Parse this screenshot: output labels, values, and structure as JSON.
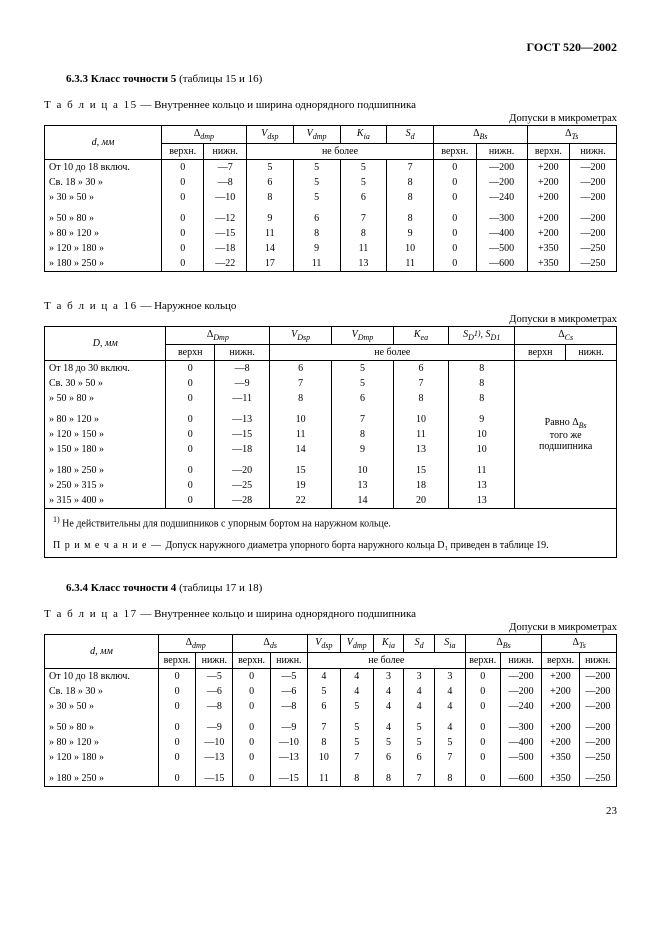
{
  "doc_header": "ГОСТ 520—2002",
  "page_number": "23",
  "section633": {
    "num": "6.3.3",
    "title": "Класс точности 5",
    "suffix": "(таблицы 15 и 16)"
  },
  "section634": {
    "num": "6.3.4",
    "title": "Класс точности 4",
    "suffix": "(таблицы 17 и 18)"
  },
  "t15": {
    "caption_pre": "Т а б л и ц а  15",
    "caption_rest": " — Внутреннее кольцо и ширина однорядного подшипника",
    "units": "Допуски в микрометрах",
    "col_d": "d, мм",
    "h_dmp": "Δ",
    "h_dmp_sub": "dmp",
    "h_vdsp": "V",
    "h_vdsp_sub": "dsp",
    "h_vdmp": "V",
    "h_vdmp_sub": "dmp",
    "h_kia": "K",
    "h_kia_sub": "ia",
    "h_sd": "S",
    "h_sd_sub": "d",
    "h_dbs": "Δ",
    "h_dbs_sub": "Bs",
    "h_dts": "Δ",
    "h_dts_sub": "Ts",
    "upper": "верхн.",
    "lower": "нижн.",
    "nb": "не более",
    "rows": [
      {
        "l": "От  10  до   18  включ.",
        "u": "0",
        "low": "—7",
        "vdsp": "5",
        "vdmp": "5",
        "kia": "5",
        "sd": "7",
        "bsu": "0",
        "bsl": "—200",
        "tsu": "+200",
        "tsl": "—200"
      },
      {
        "l": "Св. 18  »   30      »",
        "u": "0",
        "low": "—8",
        "vdsp": "6",
        "vdmp": "5",
        "kia": "5",
        "sd": "8",
        "bsu": "0",
        "bsl": "—200",
        "tsu": "+200",
        "tsl": "—200"
      },
      {
        "l": "  »   30  »   50      »",
        "u": "0",
        "low": "—10",
        "vdsp": "8",
        "vdmp": "5",
        "kia": "6",
        "sd": "8",
        "bsu": "0",
        "bsl": "—240",
        "tsu": "+200",
        "tsl": "—200"
      },
      {
        "l": "  »   50  »   80      »",
        "u": "0",
        "low": "—12",
        "vdsp": "9",
        "vdmp": "6",
        "kia": "7",
        "sd": "8",
        "bsu": "0",
        "bsl": "—300",
        "tsu": "+200",
        "tsl": "—200"
      },
      {
        "l": "  »   80  »  120     »",
        "u": "0",
        "low": "—15",
        "vdsp": "11",
        "vdmp": "8",
        "kia": "8",
        "sd": "9",
        "bsu": "0",
        "bsl": "—400",
        "tsu": "+200",
        "tsl": "—200"
      },
      {
        "l": "  » 120  »  180     »",
        "u": "0",
        "low": "—18",
        "vdsp": "14",
        "vdmp": "9",
        "kia": "11",
        "sd": "10",
        "bsu": "0",
        "bsl": "—500",
        "tsu": "+350",
        "tsl": "—250"
      },
      {
        "l": "  » 180  »  250     »",
        "u": "0",
        "low": "—22",
        "vdsp": "17",
        "vdmp": "11",
        "kia": "13",
        "sd": "11",
        "bsu": "0",
        "bsl": "—600",
        "tsu": "+350",
        "tsl": "—250"
      }
    ]
  },
  "t16": {
    "caption_pre": "Т а б л и ц а  16",
    "caption_rest": " — Наружное кольцо",
    "units": "Допуски в микрометрах",
    "col_D": "D, мм",
    "h_Dmp": "Δ",
    "h_Dmp_sub": "Dmp",
    "h_VDsp": "V",
    "h_VDsp_sub": "Dsp",
    "h_VDmp": "V",
    "h_VDmp_sub": "Dmp",
    "h_Kea": "K",
    "h_Kea_sub": "ea",
    "h_SD_html": "S<sub>D</sub><sup class='sub-note'>1)</sup>, S<sub>D1</sub>",
    "h_Cs": "Δ",
    "h_Cs_sub": "Cs",
    "upper": "верхн",
    "lower": "нижн.",
    "nb": "не более",
    "cs_note1": "Равно Δ",
    "cs_note1_sub": "Bs",
    "cs_note2": "того же",
    "cs_note3": "подшипника",
    "rows": [
      {
        "l": "От  18  до   30  включ.",
        "u": "0",
        "low": "—8",
        "vDsp": "6",
        "vDmp": "5",
        "kea": "6",
        "sd": "8"
      },
      {
        "l": "Св. 30  »   50      »",
        "u": "0",
        "low": "—9",
        "vDsp": "7",
        "vDmp": "5",
        "kea": "7",
        "sd": "8"
      },
      {
        "l": "  »   50  »   80      »",
        "u": "0",
        "low": "—11",
        "vDsp": "8",
        "vDmp": "6",
        "kea": "8",
        "sd": "8"
      },
      {
        "l": "  »   80  »  120     »",
        "u": "0",
        "low": "—13",
        "vDsp": "10",
        "vDmp": "7",
        "kea": "10",
        "sd": "9"
      },
      {
        "l": "  » 120  »  150     »",
        "u": "0",
        "low": "—15",
        "vDsp": "11",
        "vDmp": "8",
        "kea": "11",
        "sd": "10"
      },
      {
        "l": "  » 150  »  180     »",
        "u": "0",
        "low": "—18",
        "vDsp": "14",
        "vDmp": "9",
        "kea": "13",
        "sd": "10"
      },
      {
        "l": "  » 180  »  250     »",
        "u": "0",
        "low": "—20",
        "vDsp": "15",
        "vDmp": "10",
        "kea": "15",
        "sd": "11"
      },
      {
        "l": "  » 250  »  315     »",
        "u": "0",
        "low": "—25",
        "vDsp": "19",
        "vDmp": "13",
        "kea": "18",
        "sd": "13"
      },
      {
        "l": "  » 315  »  400     »",
        "u": "0",
        "low": "—28",
        "vDsp": "22",
        "vDmp": "14",
        "kea": "20",
        "sd": "13"
      }
    ],
    "footnote1_pre": "1)",
    "footnote1_txt": "Не действительны для подшипников с упорным бортом на наружном кольце.",
    "footnote2_pre": "П р и м е ч а н и е — ",
    "footnote2_txt": "Допуск наружного диаметра упорного борта наружного кольца D₁ приведен в таблице 19."
  },
  "t17": {
    "caption_pre": "Т а б л и ц а  17",
    "caption_rest": " — Внутреннее кольцо и ширина однорядного подшипника",
    "units": "Допуски в микрометрах",
    "col_d": "d, мм",
    "h_dmp": "Δ",
    "h_dmp_sub": "dmp",
    "h_ds": "Δ",
    "h_ds_sub": "ds",
    "h_vdsp": "V",
    "h_vdsp_sub": "dsp",
    "h_vdmp": "V",
    "h_vdmp_sub": "dmp",
    "h_kia": "K",
    "h_kia_sub": "ia",
    "h_sd": "S",
    "h_sd_sub": "d",
    "h_sia": "S",
    "h_sia_sub": "ia",
    "h_dbs": "Δ",
    "h_dbs_sub": "Bs",
    "h_dts": "Δ",
    "h_dts_sub": "Ts",
    "upper": "верхн.",
    "lower": "нижн.",
    "nb": "не более",
    "rows": [
      {
        "l": "От  10  до   18  включ.",
        "dmpu": "0",
        "dmpl": "—5",
        "dsu": "0",
        "dsl": "—5",
        "vdsp": "4",
        "vdmp": "4",
        "kia": "3",
        "sd": "3",
        "sia": "3",
        "bsu": "0",
        "bsl": "—200",
        "tsu": "+200",
        "tsl": "—200"
      },
      {
        "l": "Св. 18  »   30      »",
        "dmpu": "0",
        "dmpl": "—6",
        "dsu": "0",
        "dsl": "—6",
        "vdsp": "5",
        "vdmp": "4",
        "kia": "4",
        "sd": "4",
        "sia": "4",
        "bsu": "0",
        "bsl": "—200",
        "tsu": "+200",
        "tsl": "—200"
      },
      {
        "l": "  »   30  »   50      »",
        "dmpu": "0",
        "dmpl": "—8",
        "dsu": "0",
        "dsl": "—8",
        "vdsp": "6",
        "vdmp": "5",
        "kia": "4",
        "sd": "4",
        "sia": "4",
        "bsu": "0",
        "bsl": "—240",
        "tsu": "+200",
        "tsl": "—200"
      },
      {
        "l": "  »   50  »   80      »",
        "dmpu": "0",
        "dmpl": "—9",
        "dsu": "0",
        "dsl": "—9",
        "vdsp": "7",
        "vdmp": "5",
        "kia": "4",
        "sd": "5",
        "sia": "4",
        "bsu": "0",
        "bsl": "—300",
        "tsu": "+200",
        "tsl": "—200"
      },
      {
        "l": "  »   80  »  120     »",
        "dmpu": "0",
        "dmpl": "—10",
        "dsu": "0",
        "dsl": "—10",
        "vdsp": "8",
        "vdmp": "5",
        "kia": "5",
        "sd": "5",
        "sia": "5",
        "bsu": "0",
        "bsl": "—400",
        "tsu": "+200",
        "tsl": "—200"
      },
      {
        "l": "  » 120  »  180     »",
        "dmpu": "0",
        "dmpl": "—13",
        "dsu": "0",
        "dsl": "—13",
        "vdsp": "10",
        "vdmp": "7",
        "kia": "6",
        "sd": "6",
        "sia": "7",
        "bsu": "0",
        "bsl": "—500",
        "tsu": "+350",
        "tsl": "—250"
      },
      {
        "l": "  » 180  »  250     »",
        "dmpu": "0",
        "dmpl": "—15",
        "dsu": "0",
        "dsl": "—15",
        "vdsp": "11",
        "vdmp": "8",
        "kia": "8",
        "sd": "7",
        "sia": "8",
        "bsu": "0",
        "bsl": "—600",
        "tsu": "+350",
        "tsl": "—250"
      }
    ]
  }
}
